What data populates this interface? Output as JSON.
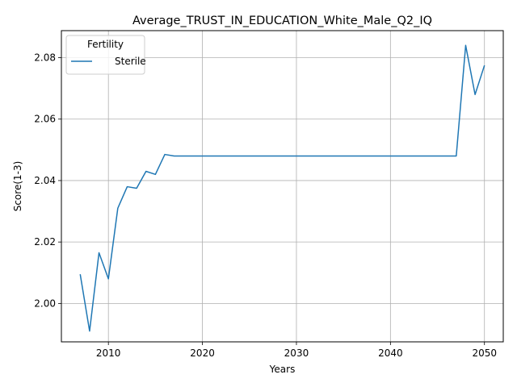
{
  "chart_data": {
    "type": "line",
    "title": "Average_TRUST_IN_EDUCATION_White_Male_Q2_IQ",
    "xlabel": "Years",
    "ylabel": "Score(1-3)",
    "xlim": [
      2005,
      2052
    ],
    "ylim": [
      1.9875,
      2.0888
    ],
    "xticks": [
      2010,
      2020,
      2030,
      2040,
      2050
    ],
    "yticks": [
      2.0,
      2.02,
      2.04,
      2.06,
      2.08
    ],
    "ytick_labels": [
      "2.00",
      "2.02",
      "2.04",
      "2.06",
      "2.08"
    ],
    "grid": true,
    "legend": {
      "title": "Fertility",
      "placement": "top-left"
    },
    "series": [
      {
        "name": "Sterile",
        "color": "#1f77b4",
        "x": [
          2007,
          2008,
          2009,
          2010,
          2011,
          2012,
          2013,
          2014,
          2015,
          2016,
          2017,
          2018,
          2019,
          2020,
          2021,
          2022,
          2023,
          2024,
          2025,
          2026,
          2027,
          2028,
          2029,
          2030,
          2031,
          2032,
          2033,
          2034,
          2035,
          2036,
          2037,
          2038,
          2039,
          2040,
          2041,
          2042,
          2043,
          2044,
          2045,
          2046,
          2047,
          2048,
          2049,
          2050
        ],
        "y": [
          2.0095,
          1.991,
          2.0165,
          2.008,
          2.031,
          2.038,
          2.0375,
          2.043,
          2.042,
          2.0485,
          2.048,
          2.048,
          2.048,
          2.048,
          2.048,
          2.048,
          2.048,
          2.048,
          2.048,
          2.048,
          2.048,
          2.048,
          2.048,
          2.048,
          2.048,
          2.048,
          2.048,
          2.048,
          2.048,
          2.048,
          2.048,
          2.048,
          2.048,
          2.048,
          2.048,
          2.048,
          2.048,
          2.048,
          2.048,
          2.048,
          2.048,
          2.084,
          2.068,
          2.0775
        ]
      }
    ]
  }
}
